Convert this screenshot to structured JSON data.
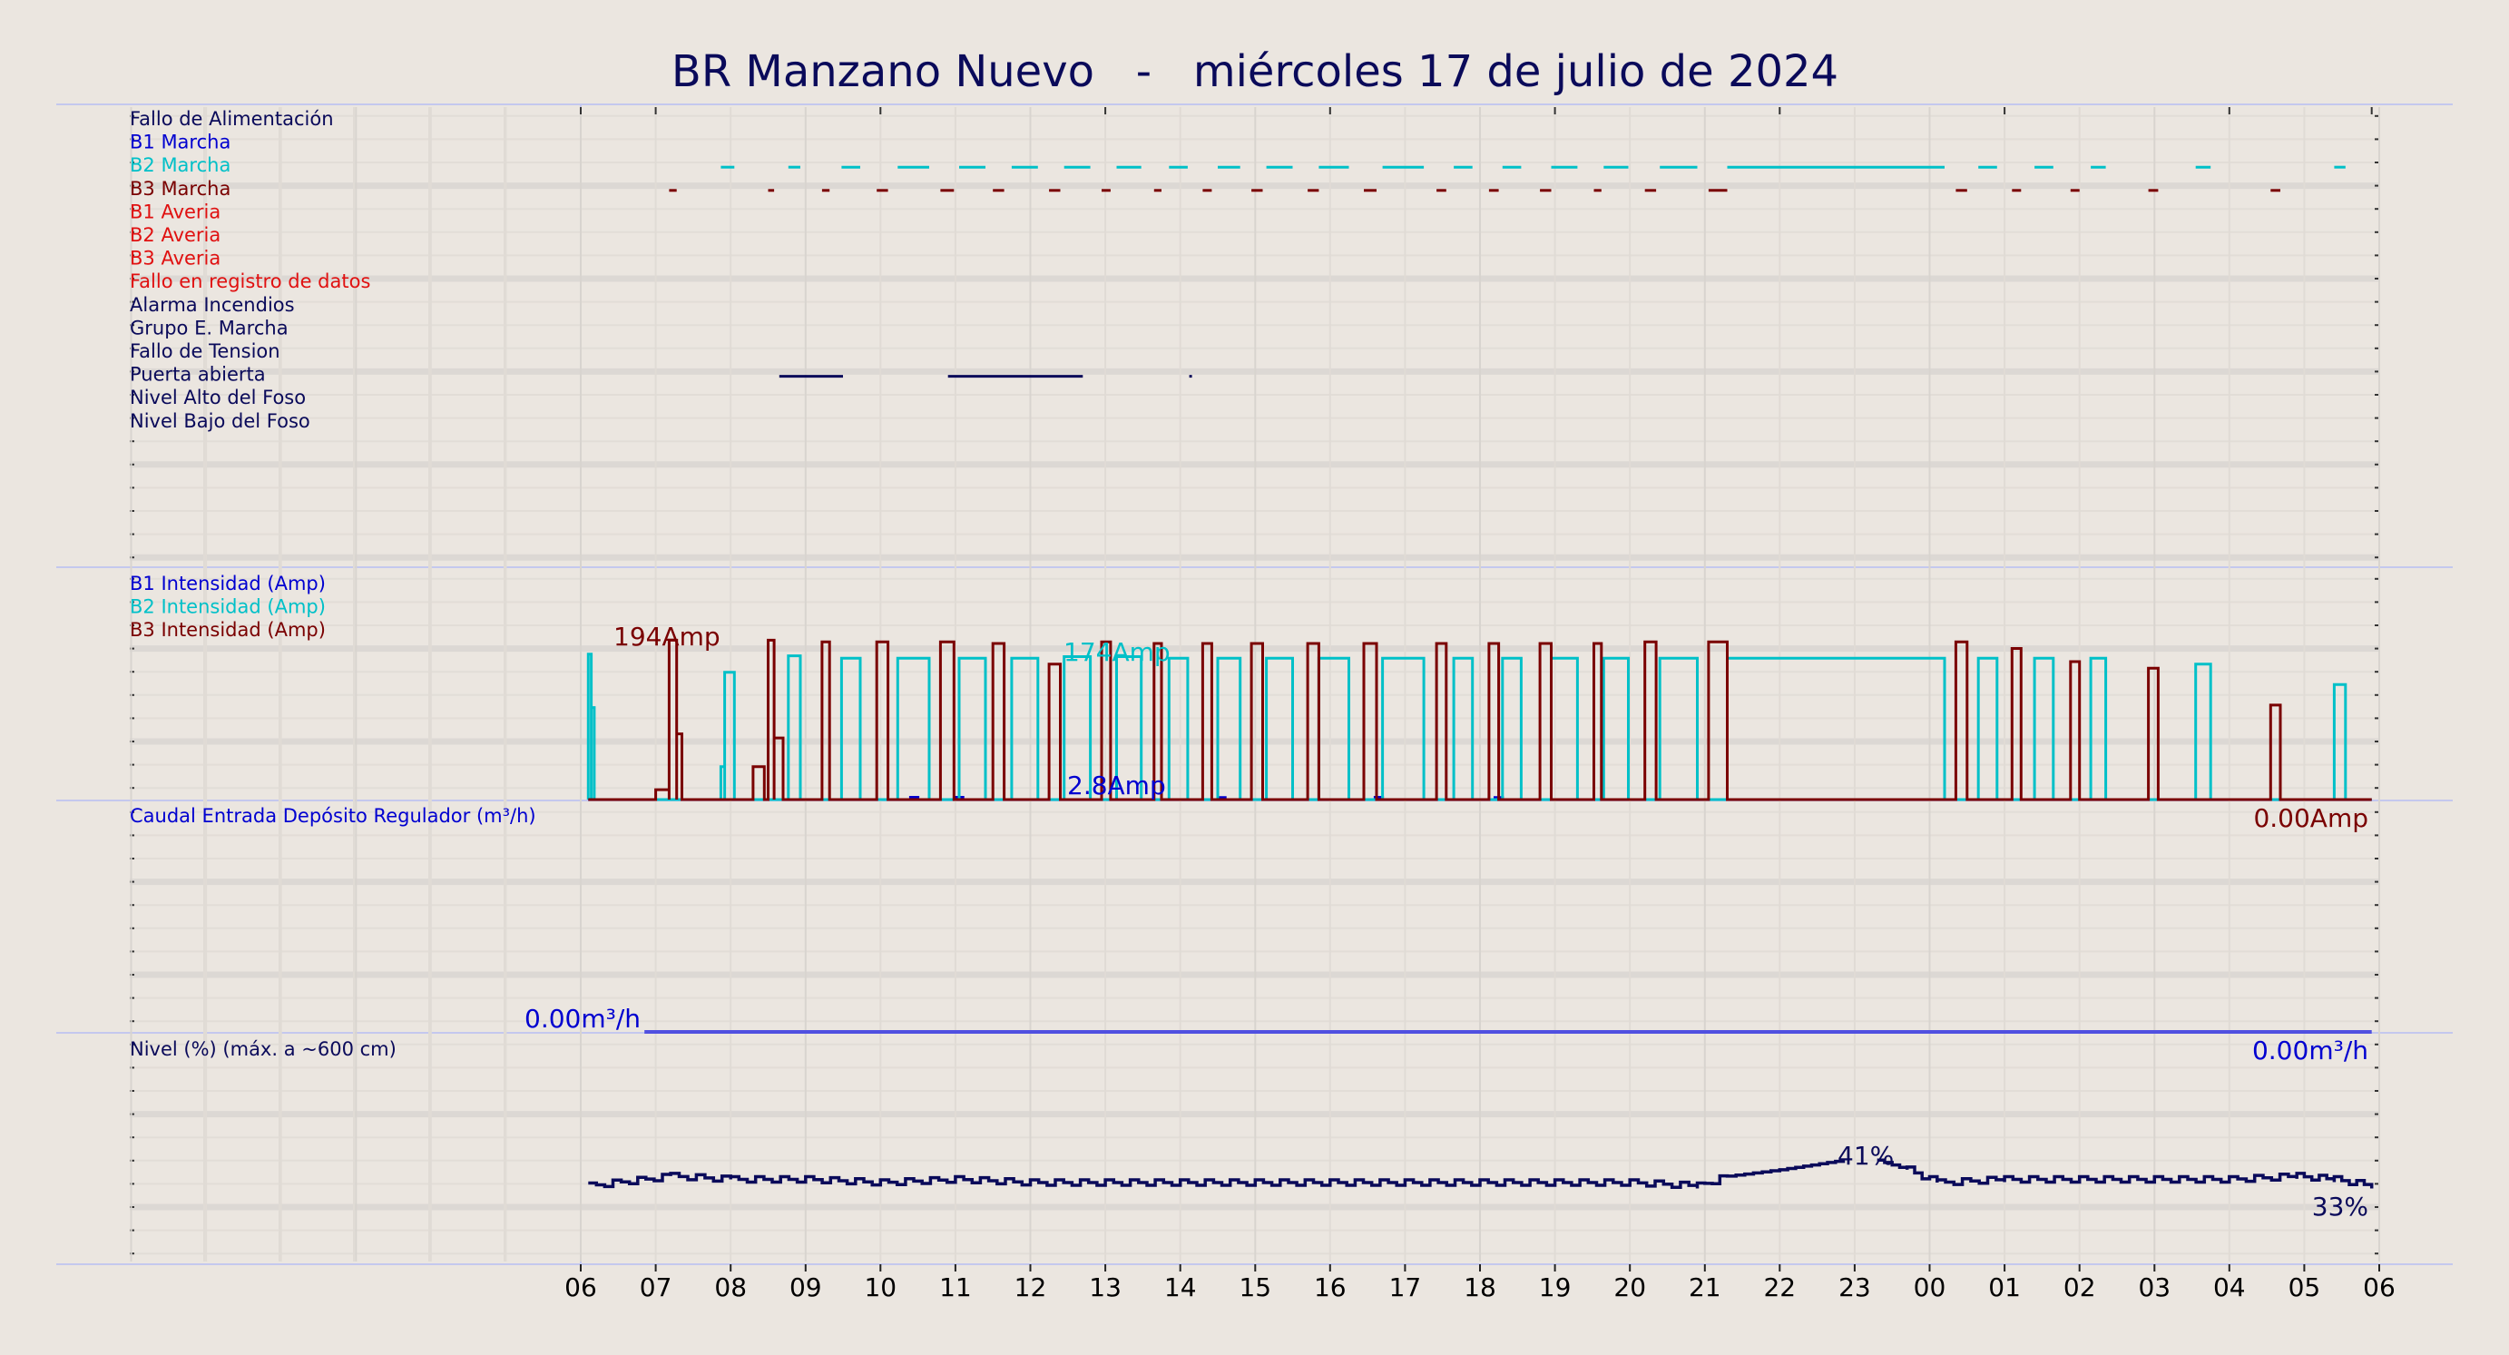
{
  "chart_data": {
    "type": "line",
    "title": "BR Manzano Nuevo   -   miércoles 17 de julio de 2024",
    "x_ticks": [
      "06",
      "07",
      "08",
      "09",
      "10",
      "11",
      "12",
      "13",
      "14",
      "15",
      "16",
      "17",
      "18",
      "19",
      "20",
      "21",
      "22",
      "23",
      "00",
      "01",
      "02",
      "03",
      "04",
      "05",
      "06"
    ],
    "x_range_hours": [
      6,
      30
    ],
    "grid": true,
    "colors": {
      "dark_navy": "#0a0a5a",
      "blue": "#0000d0",
      "cyan": "#00c0c8",
      "maroon": "#7a0000",
      "red": "#e01010",
      "flow": "#5050e0",
      "background": "#ebe6e0"
    },
    "panels": [
      {
        "name": "alarms",
        "signals": [
          {
            "label": "Fallo de Alimentación",
            "color": "#0a0a5a",
            "active": []
          },
          {
            "label": "B1 Marcha",
            "color": "#0000d0",
            "active": []
          },
          {
            "label": "B2 Marcha",
            "color": "#00c0c8",
            "active": [
              [
                7.87,
                8.05
              ],
              [
                8.77,
                8.93
              ],
              [
                9.48,
                9.73
              ],
              [
                10.23,
                10.65
              ],
              [
                11.05,
                11.4
              ],
              [
                11.75,
                12.1
              ],
              [
                12.45,
                12.8
              ],
              [
                13.15,
                13.48
              ],
              [
                13.85,
                14.1
              ],
              [
                14.5,
                14.8
              ],
              [
                15.15,
                15.5
              ],
              [
                15.85,
                16.25
              ],
              [
                16.7,
                17.25
              ],
              [
                17.65,
                17.9
              ],
              [
                18.3,
                18.55
              ],
              [
                18.95,
                19.3
              ],
              [
                19.65,
                19.98
              ],
              [
                20.4,
                20.9
              ],
              [
                21.3,
                24.2
              ],
              [
                24.65,
                24.9
              ],
              [
                25.4,
                25.65
              ],
              [
                26.15,
                26.35
              ],
              [
                27.55,
                27.75
              ],
              [
                29.4,
                29.55
              ]
            ]
          },
          {
            "label": "B3 Marcha",
            "color": "#7a0000",
            "active": [
              [
                7.18,
                7.28
              ],
              [
                8.5,
                8.58
              ],
              [
                9.22,
                9.32
              ],
              [
                9.95,
                10.1
              ],
              [
                10.8,
                10.98
              ],
              [
                11.5,
                11.65
              ],
              [
                12.25,
                12.4
              ],
              [
                12.95,
                13.07
              ],
              [
                13.65,
                13.75
              ],
              [
                14.3,
                14.42
              ],
              [
                14.95,
                15.1
              ],
              [
                15.7,
                15.85
              ],
              [
                16.45,
                16.62
              ],
              [
                17.42,
                17.55
              ],
              [
                18.12,
                18.25
              ],
              [
                18.8,
                18.95
              ],
              [
                19.52,
                19.62
              ],
              [
                20.2,
                20.35
              ],
              [
                21.05,
                21.3
              ],
              [
                24.35,
                24.5
              ],
              [
                25.1,
                25.22
              ],
              [
                25.88,
                26.0
              ],
              [
                26.92,
                27.05
              ],
              [
                28.55,
                28.68
              ]
            ]
          },
          {
            "label": "B1 Averia",
            "color": "#e01010",
            "active": []
          },
          {
            "label": "B2 Averia",
            "color": "#e01010",
            "active": []
          },
          {
            "label": "B3 Averia",
            "color": "#e01010",
            "active": []
          },
          {
            "label": "Fallo en registro de datos",
            "color": "#e01010",
            "active": []
          },
          {
            "label": "Alarma Incendios",
            "color": "#0a0a5a",
            "active": []
          },
          {
            "label": "Grupo E. Marcha",
            "color": "#0a0a5a",
            "active": []
          },
          {
            "label": "Fallo de Tension",
            "color": "#0a0a5a",
            "active": []
          },
          {
            "label": "Puerta abierta",
            "color": "#0a0a5a",
            "active": [
              [
                8.65,
                9.5
              ],
              [
                10.9,
                12.7
              ],
              [
                14.12,
                14.14
              ]
            ]
          },
          {
            "label": "Nivel Alto del Foso",
            "color": "#0a0a5a",
            "active": []
          },
          {
            "label": "Nivel Bajo del Foso",
            "color": "#0a0a5a",
            "active": []
          }
        ]
      },
      {
        "name": "intensity",
        "unit": "Amp",
        "y_range": [
          0,
          200
        ],
        "legend": [
          {
            "label": "B1 Intensidad (Amp)",
            "color": "#0000d0"
          },
          {
            "label": "B2 Intensidad (Amp)",
            "color": "#00c0c8"
          },
          {
            "label": "B3 Intensidad (Amp)",
            "color": "#7a0000"
          }
        ],
        "annotations": [
          {
            "text": "194Amp",
            "color": "#7a0000",
            "at": "B3 max",
            "x_hour": 7.2
          },
          {
            "text": "174Amp",
            "color": "#00c0c8",
            "at": "B2 max",
            "x_hour": 12.5
          },
          {
            "text": "2.8Amp",
            "color": "#0000d0",
            "at": "B1 max",
            "x_hour": 12.5
          },
          {
            "text": "0.00Amp",
            "color": "#7a0000",
            "at": "last value",
            "x_hour": 29.9
          }
        ],
        "series": [
          {
            "name": "B1 Intensidad (Amp)",
            "color": "#0000d0",
            "baseline": 0,
            "pulses": [
              [
                10.4,
                10.5,
                2.8
              ],
              [
                11.0,
                11.1,
                2.8
              ],
              [
                14.5,
                14.6,
                2.5
              ],
              [
                16.6,
                16.7,
                2.8
              ],
              [
                18.2,
                18.3,
                2.5
              ]
            ]
          },
          {
            "name": "B2 Intensidad (Amp)",
            "color": "#00c0c8",
            "baseline": 0,
            "start": [
              [
                6.1,
                6.14,
                177
              ],
              [
                6.14,
                6.18,
                112
              ]
            ],
            "pulses": [
              [
                7.87,
                7.92,
                40
              ],
              [
                7.92,
                8.05,
                155
              ],
              [
                8.77,
                8.93,
                175
              ],
              [
                9.48,
                9.73,
                172
              ],
              [
                10.23,
                10.65,
                172
              ],
              [
                11.05,
                11.4,
                172
              ],
              [
                11.75,
                12.1,
                172
              ],
              [
                12.45,
                12.8,
                174
              ],
              [
                13.15,
                13.48,
                174
              ],
              [
                13.85,
                14.1,
                172
              ],
              [
                14.5,
                14.8,
                172
              ],
              [
                15.15,
                15.5,
                172
              ],
              [
                15.85,
                16.25,
                172
              ],
              [
                16.7,
                17.25,
                172
              ],
              [
                17.65,
                17.9,
                172
              ],
              [
                18.3,
                18.55,
                172
              ],
              [
                18.95,
                19.3,
                172
              ],
              [
                19.65,
                19.98,
                172
              ],
              [
                20.4,
                20.9,
                172
              ],
              [
                21.3,
                24.2,
                172
              ],
              [
                24.65,
                24.9,
                172
              ],
              [
                25.4,
                25.65,
                172
              ],
              [
                26.15,
                26.35,
                172
              ],
              [
                27.55,
                27.75,
                165
              ],
              [
                29.4,
                29.55,
                140
              ]
            ]
          },
          {
            "name": "B3 Intensidad (Amp)",
            "color": "#7a0000",
            "baseline": 0,
            "pulses": [
              [
                7.0,
                7.18,
                12
              ],
              [
                7.18,
                7.28,
                194
              ],
              [
                7.28,
                7.35,
                80
              ],
              [
                8.3,
                8.45,
                40
              ],
              [
                8.5,
                8.58,
                194
              ],
              [
                8.58,
                8.7,
                75
              ],
              [
                9.22,
                9.32,
                192
              ],
              [
                9.95,
                10.1,
                192
              ],
              [
                10.8,
                10.98,
                192
              ],
              [
                11.5,
                11.65,
                190
              ],
              [
                12.25,
                12.4,
                165
              ],
              [
                12.95,
                13.07,
                192
              ],
              [
                13.65,
                13.75,
                190
              ],
              [
                14.3,
                14.42,
                190
              ],
              [
                14.95,
                15.1,
                190
              ],
              [
                15.7,
                15.85,
                190
              ],
              [
                16.45,
                16.62,
                190
              ],
              [
                17.42,
                17.55,
                190
              ],
              [
                18.12,
                18.25,
                190
              ],
              [
                18.8,
                18.95,
                190
              ],
              [
                19.52,
                19.62,
                190
              ],
              [
                20.2,
                20.35,
                192
              ],
              [
                21.05,
                21.3,
                192
              ],
              [
                24.35,
                24.5,
                192
              ],
              [
                25.1,
                25.22,
                184
              ],
              [
                25.88,
                26.0,
                168
              ],
              [
                26.92,
                27.05,
                160
              ],
              [
                28.55,
                28.68,
                115
              ]
            ]
          }
        ]
      },
      {
        "name": "flow",
        "legend": [
          {
            "label": "Caudal Entrada Depósito Regulador (m³/h)",
            "color": "#0000d0"
          }
        ],
        "annotations": [
          {
            "text": "0.00m³/h",
            "color": "#0000d0",
            "at": "start value"
          },
          {
            "text": "0.00m³/h",
            "color": "#0000d0",
            "at": "last value"
          }
        ],
        "series": [
          {
            "name": "Caudal Entrada Depósito Regulador (m³/h)",
            "color": "#5050e0",
            "x": [
              6.85,
              29.9
            ],
            "y": [
              0,
              0
            ]
          }
        ]
      },
      {
        "name": "level",
        "legend": [
          {
            "label": "Nivel (%) (máx. a ~600 cm)",
            "color": "#0a0a5a"
          }
        ],
        "y_range": [
          0,
          100
        ],
        "annotations": [
          {
            "text": "41%",
            "color": "#0a0a5a",
            "at": "max",
            "x_hour": 22.85
          },
          {
            "text": "33%",
            "color": "#0a0a5a",
            "at": "last value",
            "x_hour": 29.9
          }
        ],
        "series": [
          {
            "name": "Nivel (%) (máx. a ~600 cm)",
            "color": "#0a0a5a",
            "x": [
              6.1,
              7.2,
              8.0,
              9.0,
              10.0,
              11.0,
              12.0,
              13.0,
              14.0,
              15.0,
              16.0,
              17.0,
              18.0,
              19.0,
              20.0,
              20.9,
              21.3,
              22.0,
              22.85,
              23.3,
              23.7,
              24.1,
              25.0,
              26.0,
              27.0,
              28.0,
              28.9,
              29.4,
              29.9
            ],
            "y": [
              33,
              36,
              35,
              35,
              34,
              35,
              34,
              34,
              34,
              34,
              34,
              34,
              34,
              34,
              34,
              33,
              36,
              38,
              41,
              41,
              38,
              34,
              35,
              35,
              35,
              35,
              36,
              35,
              33
            ]
          }
        ]
      }
    ]
  }
}
